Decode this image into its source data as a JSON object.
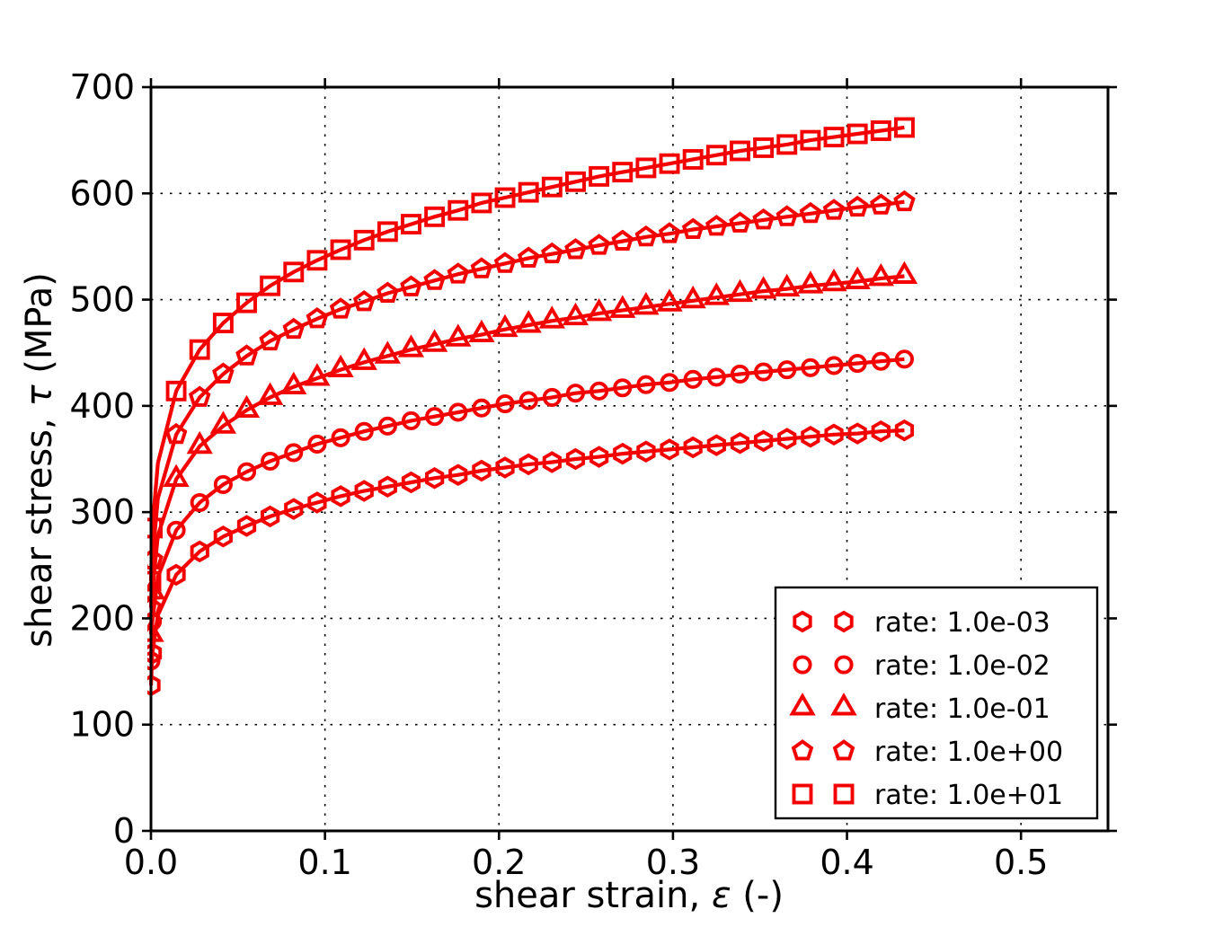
{
  "axes": {
    "xlabel": {
      "prefix": "shear strain, ",
      "symbol": "ε",
      "suffix": " (-)"
    },
    "ylabel": {
      "prefix": "shear stress, ",
      "symbol": "τ",
      "suffix": " (MPa)"
    }
  },
  "chart_data": {
    "type": "line",
    "title": "",
    "xlabel": "shear strain, ε (-)",
    "ylabel": "shear stress, τ (MPa)",
    "xlim": [
      0,
      0.55
    ],
    "ylim": [
      0,
      700
    ],
    "xticks": [
      0,
      0.1,
      0.2,
      0.3,
      0.4,
      0.5
    ],
    "xtick_labels": [
      "0.0",
      "0.1",
      "0.2",
      "0.3",
      "0.4",
      "0.5"
    ],
    "yticks": [
      0,
      100,
      200,
      300,
      400,
      500,
      600,
      700
    ],
    "ytick_labels": [
      "0",
      "100",
      "200",
      "300",
      "400",
      "500",
      "600",
      "700"
    ],
    "grid": true,
    "grid_style": "dotted",
    "legend_position": "lower right",
    "series_color": "#f40000",
    "axis_color": "#000000",
    "series": [
      {
        "name": "rate: 1.0e-03",
        "marker": "hexagon",
        "points": [
          [
            0,
            137
          ],
          [
            0.0008,
            167
          ],
          [
            0.004,
            203,
            0
          ],
          [
            0.0145,
            241
          ],
          [
            0.028,
            263
          ],
          [
            0.0415,
            277
          ],
          [
            0.055,
            287
          ],
          [
            0.0685,
            296
          ],
          [
            0.082,
            303
          ],
          [
            0.0955,
            309
          ],
          [
            0.109,
            315
          ],
          [
            0.1225,
            320
          ],
          [
            0.136,
            324
          ],
          [
            0.1495,
            328
          ],
          [
            0.163,
            332
          ],
          [
            0.1765,
            335
          ],
          [
            0.19,
            339
          ],
          [
            0.2035,
            342
          ],
          [
            0.217,
            345
          ],
          [
            0.2305,
            347
          ],
          [
            0.244,
            350
          ],
          [
            0.2575,
            352
          ],
          [
            0.271,
            355
          ],
          [
            0.2845,
            357
          ],
          [
            0.298,
            359
          ],
          [
            0.3115,
            361
          ],
          [
            0.325,
            363
          ],
          [
            0.3385,
            365
          ],
          [
            0.352,
            367
          ],
          [
            0.3655,
            369
          ],
          [
            0.379,
            371
          ],
          [
            0.3925,
            373
          ],
          [
            0.406,
            374
          ],
          [
            0.4195,
            376
          ],
          [
            0.433,
            377
          ]
        ]
      },
      {
        "name": "rate: 1.0e-02",
        "marker": "circle",
        "points": [
          [
            0,
            160
          ],
          [
            0.0008,
            197
          ],
          [
            0.004,
            239,
            0
          ],
          [
            0.0145,
            283
          ],
          [
            0.028,
            309
          ],
          [
            0.0415,
            326
          ],
          [
            0.055,
            338
          ],
          [
            0.0685,
            348
          ],
          [
            0.082,
            356
          ],
          [
            0.0955,
            364
          ],
          [
            0.109,
            370
          ],
          [
            0.1225,
            376
          ],
          [
            0.136,
            381
          ],
          [
            0.1495,
            386
          ],
          [
            0.163,
            390
          ],
          [
            0.1765,
            394
          ],
          [
            0.19,
            398
          ],
          [
            0.2035,
            402
          ],
          [
            0.217,
            405
          ],
          [
            0.2305,
            408
          ],
          [
            0.244,
            412
          ],
          [
            0.2575,
            414
          ],
          [
            0.271,
            417
          ],
          [
            0.2845,
            420
          ],
          [
            0.298,
            422
          ],
          [
            0.3115,
            425
          ],
          [
            0.325,
            427
          ],
          [
            0.3385,
            430
          ],
          [
            0.352,
            432
          ],
          [
            0.3655,
            434
          ],
          [
            0.379,
            436
          ],
          [
            0.3925,
            438
          ],
          [
            0.406,
            440
          ],
          [
            0.4195,
            442
          ],
          [
            0.433,
            444
          ]
        ]
      },
      {
        "name": "rate: 1.0e-01",
        "marker": "triangle",
        "points": [
          [
            0,
            185
          ],
          [
            0.0008,
            225
          ],
          [
            0.004,
            278,
            0
          ],
          [
            0.0145,
            331
          ],
          [
            0.028,
            362
          ],
          [
            0.0415,
            381
          ],
          [
            0.055,
            396
          ],
          [
            0.0685,
            408
          ],
          [
            0.082,
            418
          ],
          [
            0.0955,
            426
          ],
          [
            0.109,
            434
          ],
          [
            0.1225,
            441
          ],
          [
            0.136,
            447
          ],
          [
            0.1495,
            453
          ],
          [
            0.163,
            458
          ],
          [
            0.1765,
            463
          ],
          [
            0.19,
            467
          ],
          [
            0.2035,
            472
          ],
          [
            0.217,
            476
          ],
          [
            0.2305,
            480
          ],
          [
            0.244,
            483
          ],
          [
            0.2575,
            487
          ],
          [
            0.271,
            490
          ],
          [
            0.2845,
            493
          ],
          [
            0.298,
            496
          ],
          [
            0.3115,
            499
          ],
          [
            0.325,
            502
          ],
          [
            0.3385,
            505
          ],
          [
            0.352,
            508
          ],
          [
            0.3655,
            510
          ],
          [
            0.379,
            513
          ],
          [
            0.3925,
            515
          ],
          [
            0.406,
            517
          ],
          [
            0.4195,
            520
          ],
          [
            0.433,
            522
          ]
        ]
      },
      {
        "name": "rate: 1.0e+00",
        "marker": "pentagon",
        "points": [
          [
            0,
            210
          ],
          [
            0.0008,
            255
          ],
          [
            0.004,
            313,
            0
          ],
          [
            0.0145,
            373
          ],
          [
            0.028,
            408
          ],
          [
            0.0415,
            430
          ],
          [
            0.055,
            447
          ],
          [
            0.0685,
            461
          ],
          [
            0.082,
            472
          ],
          [
            0.0955,
            482
          ],
          [
            0.109,
            491
          ],
          [
            0.1225,
            498
          ],
          [
            0.136,
            506
          ],
          [
            0.1495,
            512
          ],
          [
            0.163,
            518
          ],
          [
            0.1765,
            524
          ],
          [
            0.19,
            529
          ],
          [
            0.2035,
            534
          ],
          [
            0.217,
            539
          ],
          [
            0.2305,
            543
          ],
          [
            0.244,
            547
          ],
          [
            0.2575,
            551
          ],
          [
            0.271,
            555
          ],
          [
            0.2845,
            559
          ],
          [
            0.298,
            562
          ],
          [
            0.3115,
            566
          ],
          [
            0.325,
            569
          ],
          [
            0.3385,
            572
          ],
          [
            0.352,
            575
          ],
          [
            0.3655,
            578
          ],
          [
            0.379,
            581
          ],
          [
            0.3925,
            584
          ],
          [
            0.406,
            587
          ],
          [
            0.4195,
            589
          ],
          [
            0.433,
            592
          ]
        ]
      },
      {
        "name": "rate: 1.0e+01",
        "marker": "square",
        "points": [
          [
            0,
            235
          ],
          [
            0.0008,
            285
          ],
          [
            0.004,
            346,
            0
          ],
          [
            0.0145,
            414
          ],
          [
            0.028,
            453
          ],
          [
            0.0415,
            478
          ],
          [
            0.055,
            497
          ],
          [
            0.0685,
            513
          ],
          [
            0.082,
            526
          ],
          [
            0.0955,
            537
          ],
          [
            0.109,
            547
          ],
          [
            0.1225,
            556
          ],
          [
            0.136,
            564
          ],
          [
            0.1495,
            571
          ],
          [
            0.163,
            578
          ],
          [
            0.1765,
            584
          ],
          [
            0.19,
            591
          ],
          [
            0.2035,
            596
          ],
          [
            0.217,
            601
          ],
          [
            0.2305,
            606
          ],
          [
            0.244,
            611
          ],
          [
            0.2575,
            616
          ],
          [
            0.271,
            620
          ],
          [
            0.2845,
            624
          ],
          [
            0.298,
            628
          ],
          [
            0.3115,
            632
          ],
          [
            0.325,
            636
          ],
          [
            0.3385,
            640
          ],
          [
            0.352,
            643
          ],
          [
            0.3655,
            646
          ],
          [
            0.379,
            650
          ],
          [
            0.3925,
            653
          ],
          [
            0.406,
            656
          ],
          [
            0.4195,
            659
          ],
          [
            0.433,
            662
          ]
        ]
      }
    ]
  }
}
